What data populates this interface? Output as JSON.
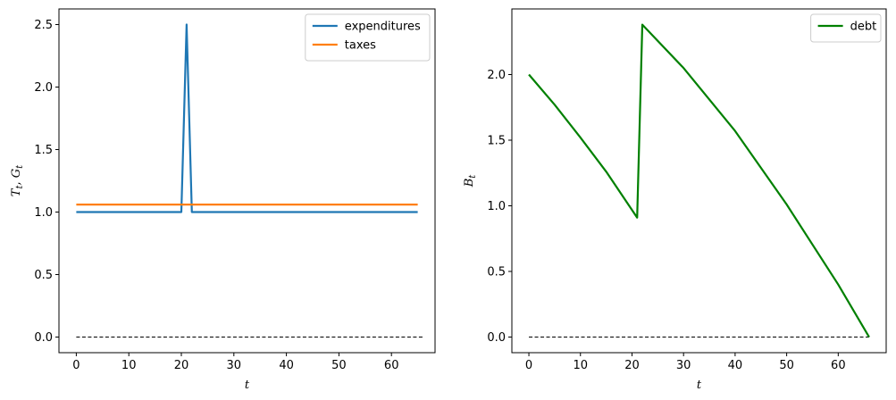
{
  "chart_data": [
    {
      "type": "line",
      "title": "",
      "xlabel": "t",
      "ylabel": "T_t, G_t",
      "xlim": [
        -3.3,
        68.3
      ],
      "ylim": [
        -0.125,
        2.625
      ],
      "xticks": [
        0,
        10,
        20,
        30,
        40,
        50,
        60
      ],
      "yticks": [
        0.0,
        0.5,
        1.0,
        1.5,
        2.0,
        2.5
      ],
      "ytick_labels": [
        "0.0",
        "0.5",
        "1.0",
        "1.5",
        "2.0",
        "2.5"
      ],
      "legend_position": "top-right",
      "series": [
        {
          "name": "expenditures",
          "color": "#1f77b4",
          "x": [
            0,
            20,
            21,
            22,
            65
          ],
          "y": [
            1.0,
            1.0,
            2.5,
            1.0,
            1.0
          ]
        },
        {
          "name": "taxes",
          "color": "#ff7f0e",
          "x": [
            0,
            65
          ],
          "y": [
            1.06,
            1.06
          ]
        }
      ],
      "reference_line": {
        "style": "dashed",
        "color": "#000000",
        "x": [
          0,
          66
        ],
        "y": [
          0,
          0
        ]
      }
    },
    {
      "type": "line",
      "title": "",
      "xlabel": "t",
      "ylabel": "B_t",
      "xlim": [
        -3.3,
        69.3
      ],
      "ylim": [
        -0.119,
        2.5
      ],
      "xticks": [
        0,
        10,
        20,
        30,
        40,
        50,
        60
      ],
      "yticks": [
        0.0,
        0.5,
        1.0,
        1.5,
        2.0
      ],
      "ytick_labels": [
        "0.0",
        "0.5",
        "1.0",
        "1.5",
        "2.0"
      ],
      "legend_position": "top-right",
      "series": [
        {
          "name": "debt",
          "color": "#008000",
          "x": [
            0,
            5,
            10,
            15,
            21,
            22,
            30,
            40,
            50,
            60,
            66
          ],
          "y": [
            2.0,
            1.77,
            1.52,
            1.26,
            0.91,
            2.38,
            2.05,
            1.57,
            1.01,
            0.4,
            0.0
          ]
        }
      ],
      "reference_line": {
        "style": "dashed",
        "color": "#000000",
        "x": [
          0,
          66
        ],
        "y": [
          0,
          0
        ]
      }
    }
  ]
}
